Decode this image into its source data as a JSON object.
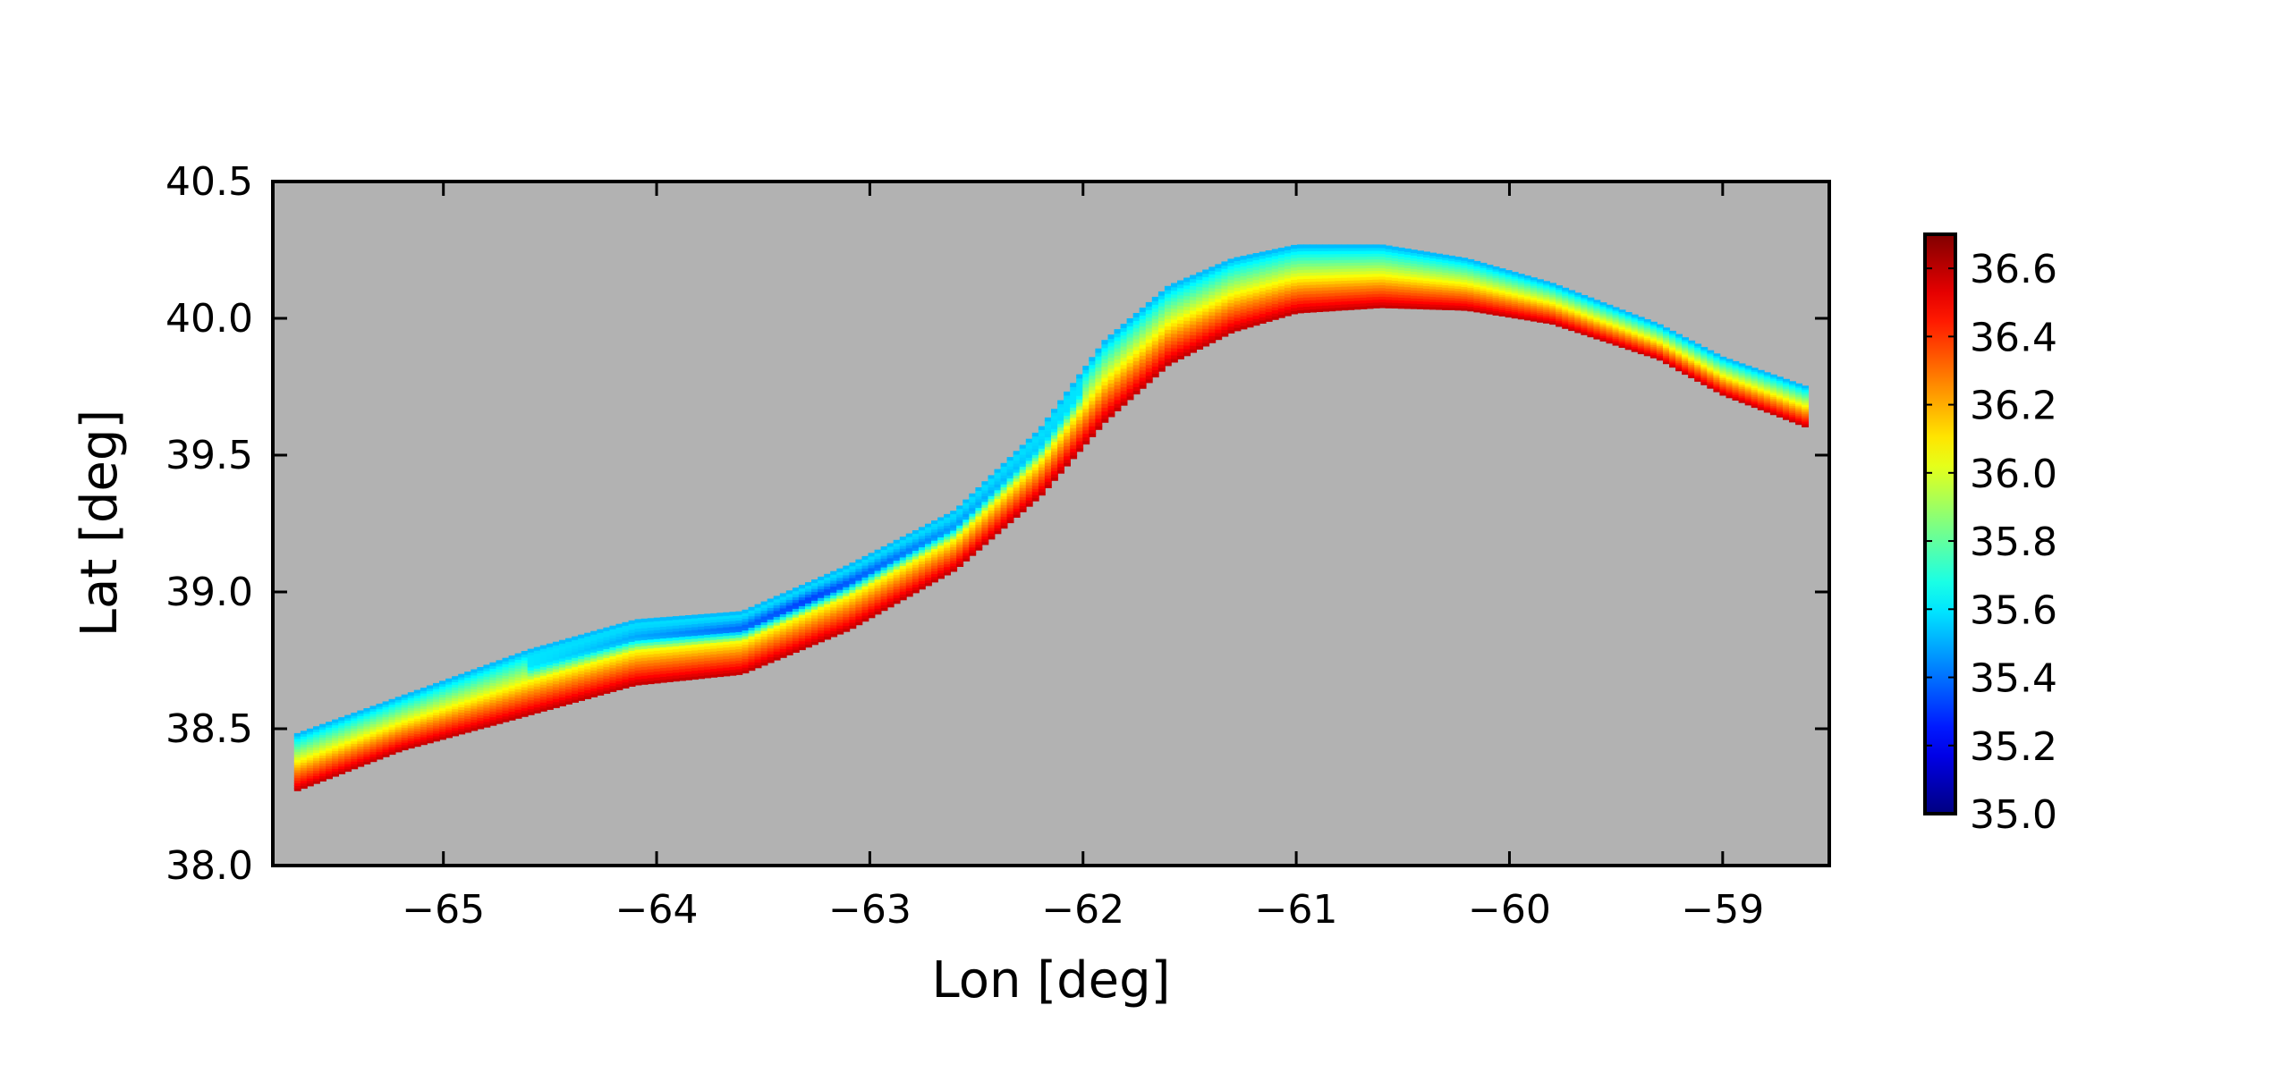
{
  "chart_data": {
    "type": "heatmap",
    "title": "",
    "xlabel": "Lon [deg]",
    "ylabel": "Lat [deg]",
    "xlim": [
      -65.8,
      -58.5
    ],
    "ylim": [
      38.0,
      40.5
    ],
    "xticks": [
      -65,
      -64,
      -63,
      -62,
      -61,
      -60,
      -59
    ],
    "xtick_labels": [
      "−65",
      "−64",
      "−63",
      "−62",
      "−61",
      "−60",
      "−59"
    ],
    "yticks": [
      38.0,
      38.5,
      39.0,
      39.5,
      40.0,
      40.5
    ],
    "ytick_labels": [
      "38.0",
      "38.5",
      "39.0",
      "39.5",
      "40.0",
      "40.5"
    ],
    "background_color": "#b2b2b2",
    "colormap": "jet",
    "colorbar": {
      "range": [
        35.0,
        36.7
      ],
      "ticks": [
        35.0,
        35.2,
        35.4,
        35.6,
        35.8,
        36.0,
        36.2,
        36.4,
        36.6
      ],
      "tick_labels": [
        "35.0",
        "35.2",
        "35.4",
        "35.6",
        "35.8",
        "36.0",
        "36.2",
        "36.4",
        "36.6"
      ],
      "placement": "right"
    },
    "band": {
      "description_points_lon": [
        -65.7,
        -65.2,
        -64.6,
        -64.1,
        -63.6,
        -63.1,
        -62.6,
        -62.2,
        -61.9,
        -61.6,
        -61.3,
        -61.0,
        -60.6,
        -60.2,
        -59.8,
        -59.3,
        -59.0,
        -58.6
      ],
      "south_edge_lat": [
        38.27,
        38.42,
        38.55,
        38.66,
        38.7,
        38.86,
        39.08,
        39.35,
        39.62,
        39.83,
        39.95,
        40.02,
        40.04,
        40.03,
        39.98,
        39.85,
        39.72,
        39.6
      ],
      "north_edge_lat": [
        38.48,
        38.62,
        38.79,
        38.9,
        38.93,
        39.1,
        39.3,
        39.6,
        39.92,
        40.12,
        40.22,
        40.27,
        40.27,
        40.22,
        40.13,
        39.98,
        39.86,
        39.75
      ],
      "south_value": 36.6,
      "north_value": 35.5,
      "core_min_value": 35.05,
      "core_lon_range": [
        -64.6,
        -62.0
      ]
    }
  }
}
